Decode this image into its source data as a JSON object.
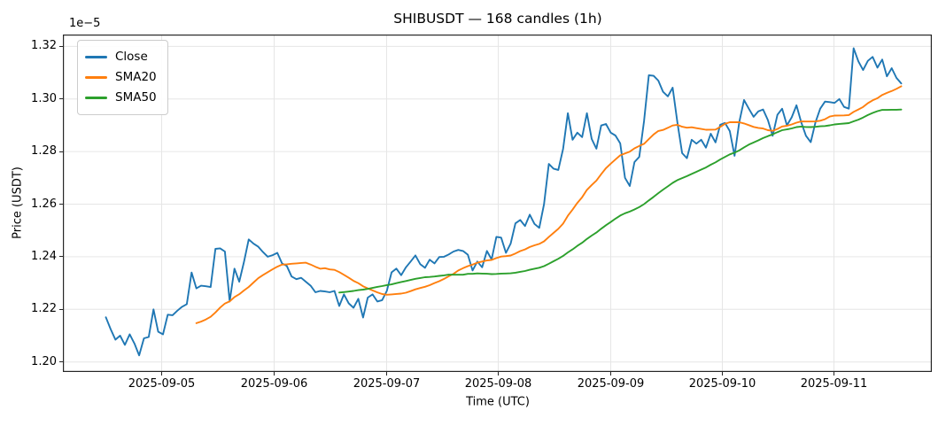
{
  "title": "SHIBUSDT — 168 candles (1h)",
  "axes": {
    "xlabel": "Time (UTC)",
    "ylabel": "Price (USDT)",
    "offset_text": "1e−5",
    "x_ticks": [
      "2025-09-05",
      "2025-09-06",
      "2025-09-07",
      "2025-09-08",
      "2025-09-09",
      "2025-09-10",
      "2025-09-11"
    ],
    "y_ticks": [
      "1.20",
      "1.22",
      "1.24",
      "1.26",
      "1.28",
      "1.30",
      "1.32"
    ]
  },
  "legend": [
    {
      "label": "Close",
      "color": "#1f77b4"
    },
    {
      "label": "SMA20",
      "color": "#ff7f0e"
    },
    {
      "label": "SMA50",
      "color": "#2ca02c"
    }
  ],
  "style": {
    "grid_color": "#e6e6e6",
    "spine_color": "#262626",
    "text_color": "#000000",
    "background": "#ffffff"
  },
  "chart_data": {
    "type": "line",
    "title": "SHIBUSDT — 168 candles (1h)",
    "xlabel": "Time (UTC)",
    "ylabel": "Price (USDT)",
    "unit_scale": "1e-5",
    "candle_interval": "1h",
    "n_points": 168,
    "x_tick_labels": [
      "2025-09-05",
      "2025-09-06",
      "2025-09-07",
      "2025-09-08",
      "2025-09-09",
      "2025-09-10",
      "2025-09-11"
    ],
    "ylim": [
      1.1962,
      1.3245
    ],
    "grid": true,
    "legend_position": "upper-left",
    "series": [
      {
        "name": "Close",
        "color": "#1f77b4",
        "values": [
          1.217,
          1.2125,
          1.2085,
          1.21,
          1.2065,
          1.2105,
          1.207,
          1.2025,
          1.209,
          1.2095,
          1.22,
          1.2115,
          1.2105,
          1.218,
          1.2178,
          1.2195,
          1.221,
          1.222,
          1.234,
          1.228,
          1.229,
          1.2288,
          1.2285,
          1.243,
          1.2432,
          1.242,
          1.223,
          1.2355,
          1.2305,
          1.238,
          1.2466,
          1.245,
          1.2438,
          1.2418,
          1.24,
          1.2406,
          1.2415,
          1.2375,
          1.2365,
          1.2325,
          1.2315,
          1.232,
          1.2305,
          1.229,
          1.2265,
          1.227,
          1.2268,
          1.2265,
          1.227,
          1.2213,
          1.2257,
          1.2223,
          1.2206,
          1.224,
          1.2169,
          1.2245,
          1.2257,
          1.223,
          1.2235,
          1.227,
          1.2341,
          1.2355,
          1.233,
          1.236,
          1.2382,
          1.2405,
          1.2372,
          1.2358,
          1.2389,
          1.2375,
          1.2399,
          1.24,
          1.2409,
          1.242,
          1.2426,
          1.2422,
          1.2408,
          1.2348,
          1.2382,
          1.236,
          1.2422,
          1.239,
          1.2476,
          1.2473,
          1.2415,
          1.245,
          1.2527,
          1.254,
          1.2517,
          1.256,
          1.2525,
          1.251,
          1.26,
          1.2753,
          1.2735,
          1.273,
          1.281,
          1.2946,
          1.2845,
          1.2872,
          1.2855,
          1.2946,
          1.2848,
          1.2811,
          1.2899,
          1.2905,
          1.2872,
          1.2861,
          1.2831,
          1.27,
          1.2669,
          1.276,
          1.278,
          1.2916,
          1.309,
          1.3088,
          1.307,
          1.3027,
          1.301,
          1.3043,
          1.2912,
          1.2794,
          1.2775,
          1.2845,
          1.283,
          1.2845,
          1.2815,
          1.2868,
          1.2835,
          1.2902,
          1.2909,
          1.2878,
          1.2784,
          1.2912,
          1.2996,
          1.2963,
          1.2932,
          1.2953,
          1.296,
          1.292,
          1.286,
          1.294,
          1.2963,
          1.29,
          1.293,
          1.2976,
          1.2912,
          1.286,
          1.2836,
          1.2912,
          1.2963,
          1.299,
          1.2988,
          1.2985,
          1.3,
          1.297,
          1.2963,
          1.3193,
          1.3143,
          1.311,
          1.3145,
          1.316,
          1.3119,
          1.315,
          1.3086,
          1.3117,
          1.308,
          1.3059
        ]
      },
      {
        "name": "SMA20",
        "color": "#ff7f0e",
        "derived": "simple-moving-average-of-Close",
        "window": 20
      },
      {
        "name": "SMA50",
        "color": "#2ca02c",
        "derived": "simple-moving-average-of-Close",
        "window": 50
      }
    ]
  }
}
